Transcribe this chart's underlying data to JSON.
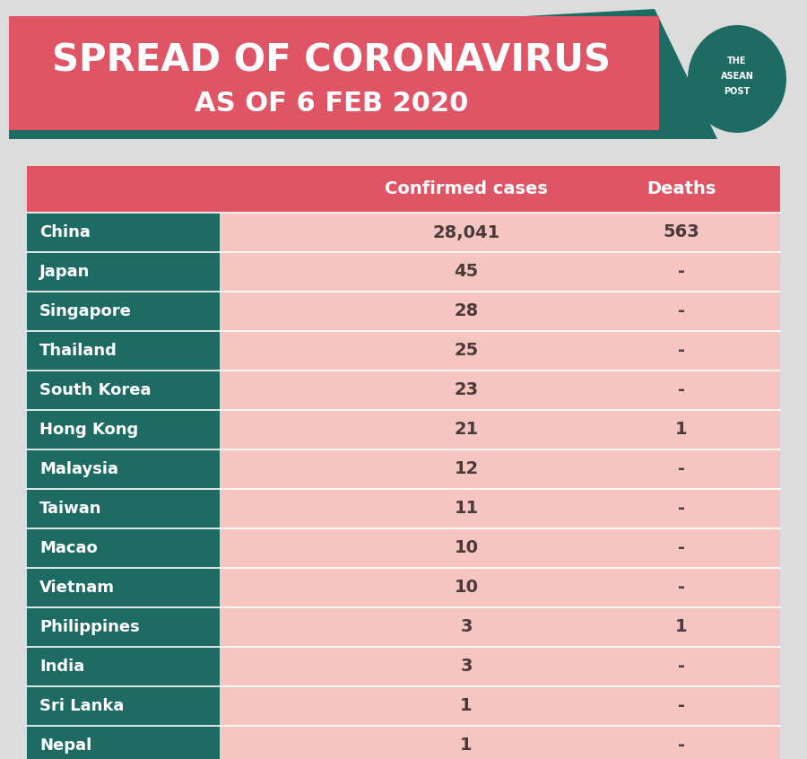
{
  "title_line1": "SPREAD OF CORONAVIRUS",
  "title_line2": "AS OF 6 FEB 2020",
  "bg_color": "#dcdcdc",
  "header_bg": "#e05565",
  "teal_dark": "#1d6b63",
  "row_label_bg": "#1d6b63",
  "row_color": "#f5c5c2",
  "col_header_confirmed": "Confirmed cases",
  "col_header_deaths": "Deaths",
  "countries": [
    "China",
    "Japan",
    "Singapore",
    "Thailand",
    "South Korea",
    "Hong Kong",
    "Malaysia",
    "Taiwan",
    "Macao",
    "Vietnam",
    "Philippines",
    "India",
    "Sri Lanka",
    "Nepal"
  ],
  "confirmed": [
    "28,041",
    "45",
    "28",
    "25",
    "23",
    "21",
    "12",
    "11",
    "10",
    "10",
    "3",
    "3",
    "1",
    "1"
  ],
  "deaths": [
    "563",
    "-",
    "-",
    "-",
    "-",
    "1",
    "-",
    "-",
    "-",
    "-",
    "1",
    "-",
    "-",
    "-"
  ],
  "title_color": "#ffffff",
  "label_text_color": "#ffffff",
  "data_text_color": "#4a3a3a",
  "separator_color": "#ffffff"
}
